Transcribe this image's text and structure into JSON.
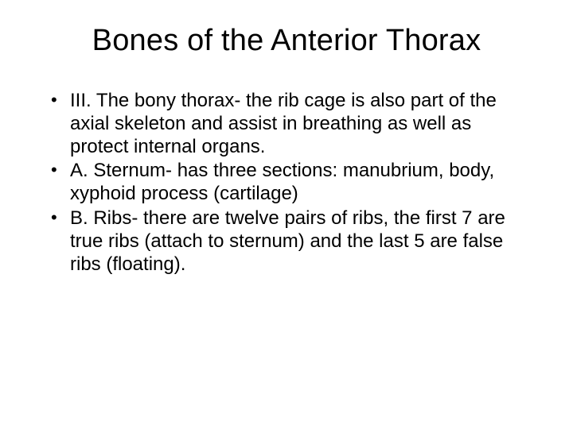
{
  "slide": {
    "title": "Bones of the Anterior Thorax",
    "bullets": [
      "III. The bony thorax- the rib cage is also part of the axial skeleton and assist in breathing as well as protect internal organs.",
      "A. Sternum- has three sections: manubrium, body, xyphoid process (cartilage)",
      "B. Ribs- there are twelve pairs of ribs, the first 7 are true ribs (attach to sternum) and the last 5 are false ribs (floating)."
    ],
    "background_color": "#ffffff",
    "text_color": "#000000",
    "title_fontsize": 38,
    "body_fontsize": 24,
    "font_family": "Arial"
  }
}
